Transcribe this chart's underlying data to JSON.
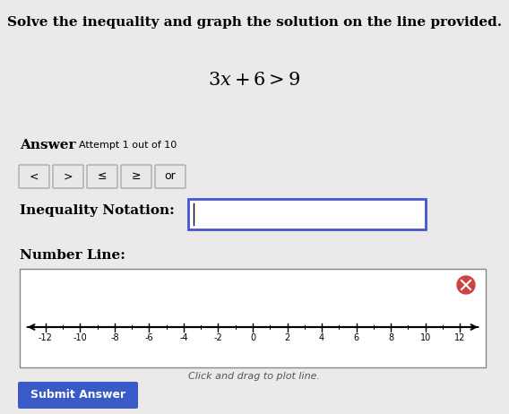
{
  "background_color": "#ebe9e9",
  "title_text": "Solve the inequality and graph the solution on the line provided.",
  "equation_text": "$3x + 6 > 9$",
  "answer_label": "Answer",
  "attempt_text": "Attempt 1 out of 10",
  "buttons": [
    "<",
    ">",
    "≤",
    "≥",
    "or"
  ],
  "inequality_label": "Inequality Notation:",
  "number_line_label": "Number Line:",
  "number_line_ticks": [
    -12,
    -10,
    -8,
    -6,
    -4,
    -2,
    0,
    2,
    4,
    6,
    8,
    10,
    12
  ],
  "number_line_caption": "Click and drag to plot line.",
  "submit_button_text": "Submit Answer",
  "submit_button_color": "#3a5bc7",
  "submit_button_text_color": "#ffffff",
  "input_box_border_color": "#4455cc",
  "button_bg": "#e8e8e8",
  "button_border": "#aaaaaa",
  "cancel_color": "#cc4444",
  "number_line_xlim": [
    -13.5,
    13.5
  ]
}
